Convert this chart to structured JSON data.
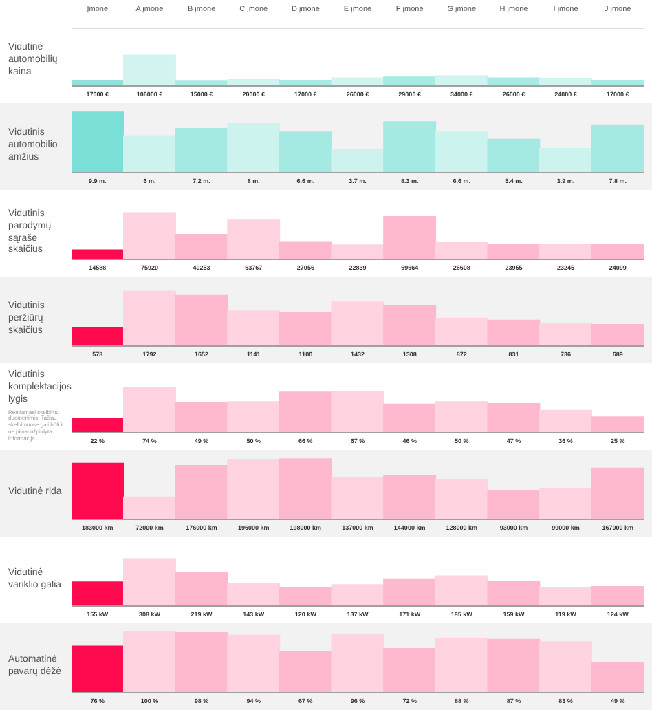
{
  "chart_data": [
    {
      "type": "bar",
      "title": "Vidutinė automobilių kaina",
      "tick_labels": "x",
      "categories": [
        "Įmonė",
        "A įmonė",
        "B įmonė",
        "C įmonė",
        "D įmonė",
        "E įmonė",
        "F įmonė",
        "G įmonė",
        "H įmonė",
        "I įmonė",
        "J įmonė"
      ],
      "values": [
        17000,
        106000,
        15000,
        20000,
        17000,
        26000,
        29000,
        34000,
        26000,
        24000,
        17000
      ],
      "value_labels": [
        "17000 €",
        "106000 €",
        "15000 €",
        "20000 €",
        "17000 €",
        "26000 €",
        "29000 €",
        "34000 €",
        "26000 €",
        "24000 €",
        "17000 €"
      ],
      "colors": [
        "#8fe3dc",
        "#d2f4f1",
        "#a8ebe5",
        "#d2f4f1",
        "#a8ebe5",
        "#d2f4f1",
        "#a8ebe5",
        "#d2f4f1",
        "#a8ebe5",
        "#d2f4f1",
        "#a8ebe5"
      ]
    },
    {
      "type": "bar",
      "title": "Vidutinis automobilio amžius",
      "tick_labels": false,
      "categories": [
        null,
        null,
        null,
        null,
        null,
        null,
        null,
        null,
        null,
        null,
        null
      ],
      "values": [
        9.9,
        6,
        7.2,
        8,
        6.6,
        3.7,
        8.3,
        6.6,
        5.4,
        3.9,
        7.8
      ],
      "value_labels": [
        "9.9 m.",
        "6 m.",
        "7.2 m.",
        "8 m.",
        "6.6 m.",
        "3.7 m.",
        "8.3 m.",
        "6.6 m.",
        "5.4 m.",
        "3.9 m.",
        "7.8 m."
      ],
      "colors": [
        "#7adfd6",
        "#cdf3ef",
        "#a4eae3",
        "#cdf3ef",
        "#a4eae3",
        "#cdf3ef",
        "#a4eae3",
        "#cdf3ef",
        "#a4eae3",
        "#cdf3ef",
        "#a4eae3"
      ]
    },
    {
      "type": "bar",
      "title": "Vidutinis parodymų sąraše skaičius",
      "tick_labels": false,
      "categories": [
        null,
        null,
        null,
        null,
        null,
        null,
        null,
        null,
        null,
        null,
        null
      ],
      "values": [
        14588,
        75920,
        40253,
        63767,
        27056,
        22839,
        69664,
        26608,
        23955,
        23245,
        24099
      ],
      "value_labels": [
        "14588",
        "75920",
        "40253",
        "63767",
        "27056",
        "22839",
        "69664",
        "26608",
        "23955",
        "23245",
        "24099"
      ],
      "colors": [
        "#ff0a4f",
        "#ffd3df",
        "#ffb9cf",
        "#ffd3df",
        "#ffb9cf",
        "#ffd3df",
        "#ffb9cf",
        "#ffd3df",
        "#ffb9cf",
        "#ffd3df",
        "#ffb9cf"
      ]
    },
    {
      "type": "bar",
      "title": "Vidutinis peržiūrų skaičius",
      "tick_labels": false,
      "categories": [
        null,
        null,
        null,
        null,
        null,
        null,
        null,
        null,
        null,
        null,
        null
      ],
      "values": [
        578,
        1792,
        1652,
        1141,
        1100,
        1432,
        1308,
        872,
        831,
        736,
        689
      ],
      "value_labels": [
        "578",
        "1792",
        "1652",
        "1141",
        "1100",
        "1432",
        "1308",
        "872",
        "831",
        "736",
        "689"
      ],
      "colors": [
        "#ff0a4f",
        "#ffd3df",
        "#ffb9cf",
        "#ffd3df",
        "#ffb9cf",
        "#ffd3df",
        "#ffb9cf",
        "#ffd3df",
        "#ffb9cf",
        "#ffd3df",
        "#ffb9cf"
      ]
    },
    {
      "type": "bar",
      "title": "Vidutinis komplektacijos lygis",
      "annotations": [
        "Remiamasi skelbimų duomenimis. Tačiau skelbimuose gali būti ir ne pilnai užpildyta informacija."
      ],
      "tick_labels": false,
      "categories": [
        null,
        null,
        null,
        null,
        null,
        null,
        null,
        null,
        null,
        null,
        null
      ],
      "values": [
        22,
        74,
        49,
        50,
        66,
        67,
        46,
        50,
        47,
        36,
        25
      ],
      "value_labels": [
        "22 %",
        "74 %",
        "49 %",
        "50 %",
        "66 %",
        "67 %",
        "46 %",
        "50 %",
        "47 %",
        "36 %",
        "25 %"
      ],
      "colors": [
        "#ff0a4f",
        "#ffd3df",
        "#ffb9cf",
        "#ffd3df",
        "#ffb9cf",
        "#ffd3df",
        "#ffb9cf",
        "#ffd3df",
        "#ffb9cf",
        "#ffd3df",
        "#ffb9cf"
      ]
    },
    {
      "type": "bar",
      "title": "Vidutinė rida",
      "tick_labels": false,
      "categories": [
        null,
        null,
        null,
        null,
        null,
        null,
        null,
        null,
        null,
        null,
        null
      ],
      "values": [
        183000,
        72000,
        176000,
        196000,
        198000,
        137000,
        144000,
        128000,
        93000,
        99000,
        167000
      ],
      "value_labels": [
        "183000 km",
        "72000 km",
        "176000 km",
        "196000 km",
        "198000 km",
        "137000 km",
        "144000 km",
        "128000 km",
        "93000 km",
        "99000 km",
        "167000 km"
      ],
      "colors": [
        "#ff0a4f",
        "#ffd3df",
        "#ffb9cf",
        "#ffd3df",
        "#ffb9cf",
        "#ffd3df",
        "#ffb9cf",
        "#ffd3df",
        "#ffb9cf",
        "#ffd3df",
        "#ffb9cf"
      ]
    },
    {
      "type": "bar",
      "title": "Vidutinė variklio galia",
      "tick_labels": false,
      "categories": [
        null,
        null,
        null,
        null,
        null,
        null,
        null,
        null,
        null,
        null,
        null
      ],
      "values": [
        155,
        308,
        219,
        143,
        120,
        137,
        171,
        195,
        159,
        119,
        124
      ],
      "value_labels": [
        "155 kW",
        "308 kW",
        "219 kW",
        "143 kW",
        "120 kW",
        "137 kW",
        "171 kW",
        "195 kW",
        "159 kW",
        "119 kW",
        "124 kW"
      ],
      "colors": [
        "#ff0a4f",
        "#ffd3df",
        "#ffb9cf",
        "#ffd3df",
        "#ffb9cf",
        "#ffd3df",
        "#ffb9cf",
        "#ffd3df",
        "#ffb9cf",
        "#ffd3df",
        "#ffb9cf"
      ]
    },
    {
      "type": "bar",
      "title": "Automatinė pavarų dėžė",
      "tick_labels": false,
      "categories": [
        null,
        null,
        null,
        null,
        null,
        null,
        null,
        null,
        null,
        null,
        null
      ],
      "values": [
        76,
        100,
        98,
        94,
        67,
        96,
        72,
        88,
        87,
        83,
        49
      ],
      "value_labels": [
        "76 %",
        "100 %",
        "98 %",
        "94 %",
        "67 %",
        "96 %",
        "72 %",
        "88 %",
        "87 %",
        "83 %",
        "49 %"
      ],
      "colors": [
        "#ff0a4f",
        "#ffd3df",
        "#ffb9cf",
        "#ffd3df",
        "#ffb9cf",
        "#ffd3df",
        "#ffb9cf",
        "#ffd3df",
        "#ffb9cf",
        "#ffd3df",
        "#ffb9cf"
      ]
    }
  ]
}
